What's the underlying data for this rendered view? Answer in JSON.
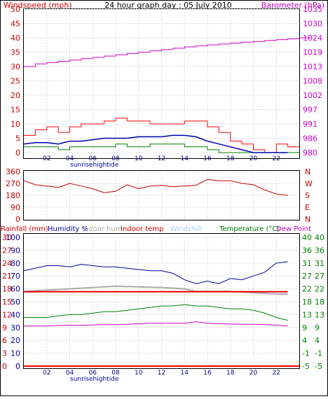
{
  "header": {
    "left_title": "Windspeed (mph)",
    "center_title": "24 hour graph day : 05 July 2010",
    "right_title": "Barometer (hPa)"
  },
  "x_axis": {
    "hour_labels": [
      "02",
      "04",
      "06",
      "08",
      "10",
      "12",
      "14",
      "16",
      "18",
      "20",
      "22"
    ],
    "sun_label": "sunrisehightide"
  },
  "colors": {
    "wind_gust": "#ff0000",
    "wind_avg": "#0000aa",
    "wind_low": "#008000",
    "barometer": "#cc00cc",
    "direction": "#cc0000",
    "humidity": "#000099",
    "indoor_hum": "#aaaaaa",
    "indoor_temp": "#ff0000",
    "windchill": "#aaccee",
    "temperature": "#008000",
    "dew_point": "#cc00cc",
    "rainfall": "#ff0000"
  },
  "panel2": {
    "right_labels": [
      "N",
      "W",
      "S",
      "E",
      "N"
    ]
  },
  "panel3": {
    "legend": {
      "rainfall": "Rainfall (mm)",
      "humidity": "Humidity %",
      "indoor_hum": "Indoor hum",
      "indoor_temp": "Indoor temp",
      "windchill": "Windchill",
      "temperature": "Temperature (°C)",
      "dew_point": "Dew Point"
    }
  },
  "chart_data": [
    {
      "type": "line",
      "title": "24 hour graph day : 05 July 2010",
      "x_range_hours": [
        0,
        24
      ],
      "y_left": {
        "label": "Windspeed (mph)",
        "range": [
          0,
          50
        ],
        "ticks": [
          0,
          5,
          10,
          15,
          20,
          25,
          30,
          35,
          40,
          45,
          50
        ]
      },
      "y_right": {
        "label": "Barometer (hPa)",
        "tick_labels": [
          "980",
          "986",
          "991",
          "997",
          "1002",
          "1008",
          "1013",
          "1019",
          "1024",
          "1030",
          "1035"
        ]
      },
      "series": [
        {
          "key": "gust",
          "axis": "left",
          "x": [
            0,
            1,
            2,
            3,
            4,
            5,
            6,
            7,
            8,
            9,
            10,
            11,
            12,
            13,
            14,
            15,
            16,
            17,
            18,
            19,
            20,
            21,
            22,
            23
          ],
          "values": [
            6,
            8,
            9,
            7,
            9,
            10,
            10,
            11,
            12,
            11,
            11,
            10,
            10,
            10,
            11,
            11,
            9,
            7,
            4,
            3,
            1,
            0,
            3,
            2
          ]
        },
        {
          "key": "average",
          "axis": "left",
          "x": [
            0,
            1,
            2,
            3,
            4,
            5,
            6,
            7,
            8,
            9,
            10,
            11,
            12,
            13,
            14,
            15,
            16,
            17,
            18,
            19,
            20,
            21,
            22,
            23
          ],
          "values": [
            3,
            3.5,
            3.5,
            3,
            4,
            4,
            4.5,
            5,
            5,
            5,
            5.5,
            5.5,
            5.5,
            6,
            6,
            5.5,
            4,
            3,
            2,
            1,
            0,
            0,
            0,
            0
          ]
        },
        {
          "key": "lowest",
          "axis": "left",
          "x": [
            0,
            1,
            2,
            3,
            4,
            5,
            6,
            7,
            8,
            9,
            10,
            11,
            12,
            13,
            14,
            15,
            16,
            17,
            18,
            19,
            20,
            21,
            22,
            23
          ],
          "values": [
            2,
            2,
            2,
            1,
            2,
            2,
            2,
            2,
            3,
            2,
            2,
            3,
            3,
            3,
            2,
            2,
            1,
            0,
            0,
            0,
            0,
            0,
            0,
            0
          ]
        },
        {
          "key": "barometer",
          "axis": "right",
          "hpa_range": [
            980,
            1035
          ],
          "x": [
            0,
            1,
            2,
            3,
            4,
            5,
            6,
            7,
            8,
            9,
            10,
            11,
            12,
            13,
            14,
            15,
            16,
            17,
            18,
            19,
            20,
            21,
            22,
            23,
            24
          ],
          "values": [
            1013,
            1014,
            1014.5,
            1015,
            1015.5,
            1016,
            1016.5,
            1017,
            1017.5,
            1018,
            1018.5,
            1019,
            1019.5,
            1020,
            1020.5,
            1021,
            1021.3,
            1021.6,
            1022,
            1022.3,
            1022.6,
            1023,
            1023.3,
            1023.6,
            1024
          ]
        }
      ]
    },
    {
      "type": "line",
      "y_left": {
        "range": [
          0,
          360
        ],
        "ticks": [
          0,
          90,
          180,
          270,
          360
        ]
      },
      "series": [
        {
          "key": "direction",
          "x": [
            0,
            1,
            2,
            3,
            4,
            5,
            6,
            7,
            8,
            9,
            10,
            11,
            12,
            13,
            14,
            15,
            16,
            17,
            18,
            19,
            20,
            21,
            22,
            23
          ],
          "values": [
            290,
            260,
            250,
            240,
            270,
            250,
            230,
            200,
            210,
            260,
            230,
            250,
            255,
            245,
            250,
            255,
            300,
            290,
            290,
            270,
            260,
            220,
            190,
            180
          ]
        }
      ]
    },
    {
      "type": "line",
      "y_left": {
        "label": "Rainfall (mm)",
        "tick_labels": [
          "0",
          "3",
          "6",
          "9",
          "12",
          "15",
          "18",
          "21",
          "24",
          "27",
          "30"
        ]
      },
      "y_left2": {
        "label": "Humidity %",
        "tick_labels": [
          "0",
          "10",
          "20",
          "30",
          "40",
          "50",
          "60",
          "70",
          "80",
          "90",
          "100"
        ]
      },
      "y_right": {
        "label": "Temperature (°C)",
        "tick_labels": [
          "40",
          "36",
          "31",
          "27",
          "22",
          "18",
          "13",
          "9",
          "4",
          "-1",
          "-5"
        ]
      },
      "y_right2": {
        "tick_labels": [
          "40",
          "36",
          "31",
          "27",
          "22",
          "18",
          "13",
          "9",
          "4",
          "-1",
          "-5"
        ]
      },
      "series": [
        {
          "key": "humidity",
          "unit": "%",
          "x": [
            0,
            1,
            2,
            3,
            4,
            5,
            6,
            7,
            8,
            9,
            10,
            11,
            12,
            13,
            14,
            15,
            16,
            17,
            18,
            19,
            20,
            21,
            22,
            23
          ],
          "values": [
            74,
            76,
            78,
            78,
            77,
            79,
            78,
            77,
            77,
            76,
            75,
            74,
            74,
            72,
            67,
            64,
            66,
            64,
            68,
            67,
            70,
            73,
            80,
            81
          ]
        },
        {
          "key": "indoor_hum",
          "unit": "%",
          "x": [
            0,
            4,
            8,
            12,
            14,
            15,
            18,
            20,
            22,
            23
          ],
          "values": [
            58,
            60,
            62,
            61,
            60,
            58,
            58,
            57,
            56,
            56
          ]
        },
        {
          "key": "indoor_temp",
          "unit": "°C",
          "x": [
            0,
            4,
            8,
            12,
            16,
            20,
            23
          ],
          "values": [
            21,
            21,
            21,
            21,
            21,
            21,
            21
          ]
        },
        {
          "key": "temperature",
          "unit": "°C",
          "x": [
            0,
            1,
            2,
            3,
            4,
            5,
            6,
            7,
            8,
            9,
            10,
            11,
            12,
            13,
            14,
            15,
            16,
            17,
            18,
            19,
            20,
            21,
            22,
            23
          ],
          "values": [
            12,
            12,
            12,
            12.5,
            13,
            13,
            13.5,
            14,
            14,
            14.5,
            15,
            15.5,
            16,
            16,
            16.5,
            16,
            16,
            15.5,
            15,
            15,
            14.5,
            13.5,
            12,
            11
          ]
        },
        {
          "key": "dew_point",
          "unit": "°C",
          "x": [
            0,
            1,
            2,
            3,
            4,
            5,
            6,
            7,
            8,
            9,
            10,
            11,
            12,
            13,
            14,
            15,
            16,
            17,
            18,
            19,
            20,
            21,
            22,
            23
          ],
          "values": [
            9,
            9,
            9,
            9.2,
            9.3,
            9.2,
            9.4,
            9.5,
            9.5,
            9.6,
            9.8,
            10,
            10,
            10,
            10,
            10.5,
            10,
            9.8,
            9.7,
            9.6,
            9.6,
            9.5,
            9.3,
            9
          ]
        },
        {
          "key": "rainfall",
          "unit": "mm",
          "x": [
            0,
            24
          ],
          "values": [
            0,
            0
          ]
        }
      ]
    }
  ]
}
